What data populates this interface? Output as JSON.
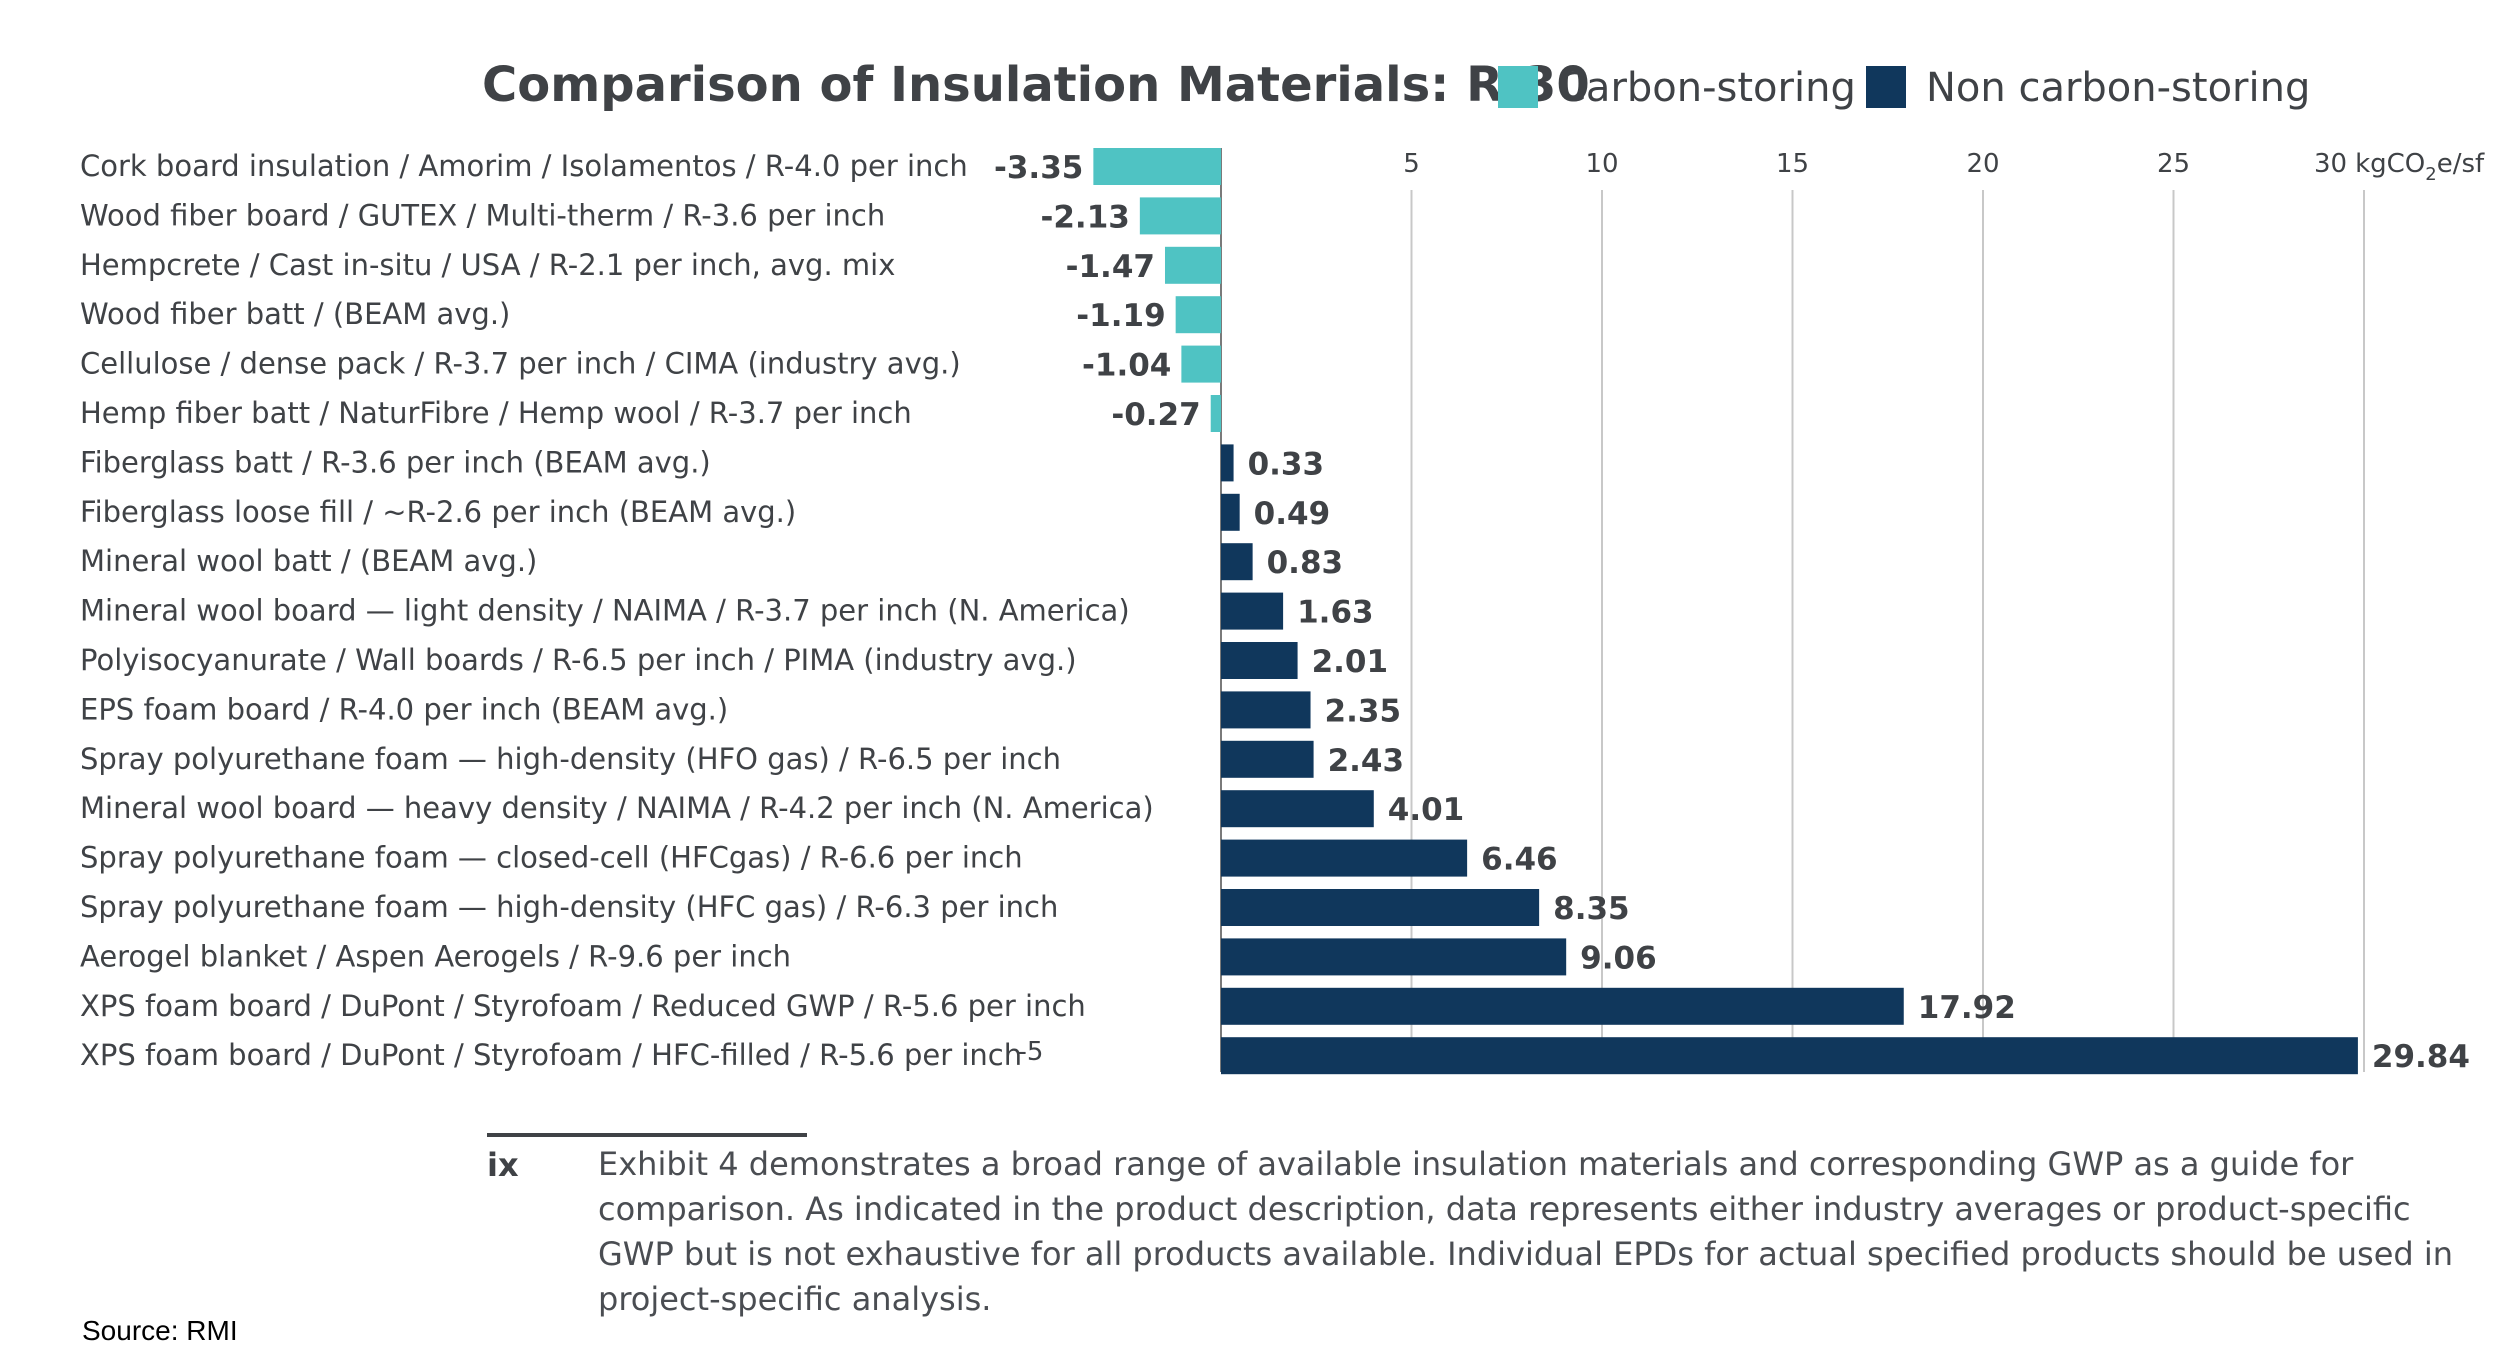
{
  "chart_data": {
    "type": "bar",
    "orientation": "horizontal",
    "title": "Comparison of Insulation Materials: R-30",
    "unit_label": "kgCO",
    "unit_sub": "2",
    "unit_tail": "e/sf",
    "xlim": [
      -5,
      30
    ],
    "x_ticks": [
      5,
      10,
      15,
      20,
      25,
      30
    ],
    "x_tick_labels": [
      "5",
      "10",
      "15",
      "20",
      "25",
      "30"
    ],
    "min_tick_label": "-5",
    "legend": {
      "placement": "top-right",
      "entries": [
        {
          "label": "Carbon-storing",
          "color": "#4fc3c3"
        },
        {
          "label": "Non carbon-storing",
          "color": "#10375c"
        }
      ]
    },
    "categories": [
      "Cork board insulation / Amorim / Isolamentos / R-4.0 per inch",
      "Wood fiber board / GUTEX / Multi-therm / R-3.6 per inch",
      "Hempcrete / Cast in-situ / USA / R-2.1 per inch, avg. mix",
      "Wood fiber batt / (BEAM avg.)",
      "Cellulose / dense pack / R-3.7 per inch / CIMA (industry avg.)",
      "Hemp fiber batt / NaturFibre / Hemp wool / R-3.7 per inch",
      "Fiberglass batt / R-3.6 per inch (BEAM avg.)",
      "Fiberglass loose fill / ~R-2.6 per inch (BEAM avg.)",
      "Mineral wool batt / (BEAM avg.)",
      "Mineral wool board — light density / NAIMA / R-3.7 per inch (N. America)",
      "Polyisocyanurate / Wall boards / R-6.5 per inch / PIMA (industry avg.)",
      "EPS foam board / R-4.0 per inch (BEAM avg.)",
      "Spray polyurethane foam — high-density (HFO gas) / R-6.5 per inch",
      "Mineral wool board — heavy density / NAIMA / R-4.2 per inch (N. America)",
      "Spray polyurethane foam — closed-cell (HFCgas) / R-6.6 per inch",
      "Spray polyurethane foam — high-density (HFC gas) / R-6.3 per inch",
      "Aerogel blanket / Aspen Aerogels / R-9.6 per inch",
      "XPS foam board / DuPont / Styrofoam / Reduced GWP / R-5.6 per inch",
      "XPS foam board / DuPont / Styrofoam / HFC-filled / R-5.6 per inch"
    ],
    "values": [
      -3.35,
      -2.13,
      -1.47,
      -1.19,
      -1.04,
      -0.27,
      0.33,
      0.49,
      0.83,
      1.63,
      2.01,
      2.35,
      2.43,
      4.01,
      6.46,
      8.35,
      9.06,
      17.92,
      29.84
    ],
    "value_labels": [
      "-3.35",
      "-2.13",
      "-1.47",
      "-1.19",
      "-1.04",
      "-0.27",
      "0.33",
      "0.49",
      "0.83",
      "1.63",
      "2.01",
      "2.35",
      "2.43",
      "4.01",
      "6.46",
      "8.35",
      "9.06",
      "17.92",
      "29.84"
    ],
    "series_group": [
      "Carbon-storing",
      "Carbon-storing",
      "Carbon-storing",
      "Carbon-storing",
      "Carbon-storing",
      "Carbon-storing",
      "Non carbon-storing",
      "Non carbon-storing",
      "Non carbon-storing",
      "Non carbon-storing",
      "Non carbon-storing",
      "Non carbon-storing",
      "Non carbon-storing",
      "Non carbon-storing",
      "Non carbon-storing",
      "Non carbon-storing",
      "Non carbon-storing",
      "Non carbon-storing",
      "Non carbon-storing"
    ],
    "grid": true
  },
  "footnote": {
    "marker": "ix",
    "text": "Exhibit 4 demonstrates a broad range of available insulation materials and corresponding GWP as a guide for comparison. As indicated in the product description, data represents either industry averages or product-specific GWP but is not exhaustive for all products available. Individual EPDs for actual specified products should be used in project-specific analysis."
  },
  "source": "Source: RMI"
}
